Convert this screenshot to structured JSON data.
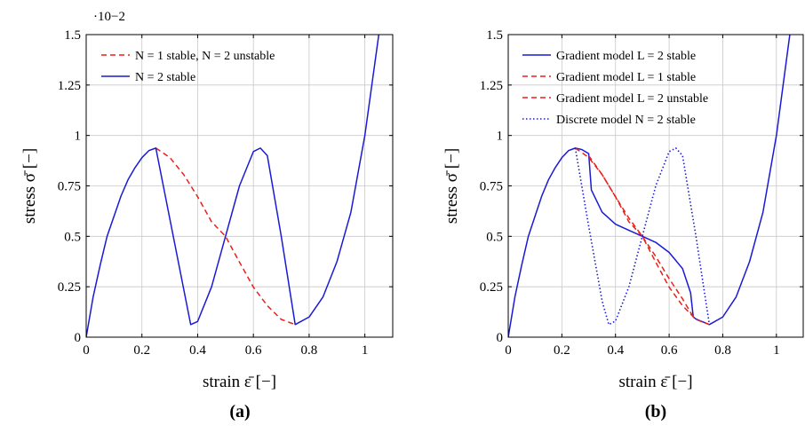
{
  "chart_data": [
    {
      "type": "line",
      "panel_label": "(a)",
      "xlabel": "strain ε̄ [−]",
      "ylabel": "stress σ̄ [−]",
      "y_scale_note": "·10−2",
      "xlim": [
        0,
        1.1
      ],
      "ylim": [
        0,
        1.5
      ],
      "xticks": [
        "0",
        "0.2",
        "0.4",
        "0.6",
        "0.8",
        "1"
      ],
      "yticks": [
        "0",
        "0.25",
        "0.5",
        "0.75",
        "1",
        "1.25",
        "1.5"
      ],
      "grid": true,
      "legend_position": "top-left",
      "series": [
        {
          "name": "N = 1 stable, N = 2 unstable",
          "color": "#e8201a",
          "dash": "dashed",
          "x": [
            0.25,
            0.3,
            0.35,
            0.4,
            0.45,
            0.5,
            0.55,
            0.6,
            0.65,
            0.7,
            0.75
          ],
          "y": [
            0.9375,
            0.891,
            0.806,
            0.696,
            0.572,
            0.5,
            0.372,
            0.248,
            0.156,
            0.088,
            0.0625
          ]
        },
        {
          "name": "N = 2 stable",
          "color": "#1a1ad6",
          "dash": "solid",
          "x": [
            0,
            0.025,
            0.05,
            0.075,
            0.1,
            0.125,
            0.15,
            0.175,
            0.2,
            0.225,
            0.25,
            0.375,
            0.4,
            0.45,
            0.5,
            0.55,
            0.6,
            0.625,
            0.65,
            0.7,
            0.75,
            0.8,
            0.85,
            0.9,
            0.95,
            1,
            1.05
          ],
          "y": [
            0,
            0.2,
            0.356,
            0.5,
            0.6,
            0.7,
            0.78,
            0.84,
            0.89,
            0.925,
            0.9375,
            0.0625,
            0.078,
            0.25,
            0.5,
            0.75,
            0.92,
            0.9375,
            0.9,
            0.5,
            0.0625,
            0.1,
            0.2,
            0.375,
            0.62,
            1.0,
            1.5
          ]
        }
      ]
    },
    {
      "type": "line",
      "panel_label": "(b)",
      "xlabel": "strain ε̄ [−]",
      "ylabel": "stress σ̄ [−]",
      "y_scale_note": "",
      "xlim": [
        0,
        1.1
      ],
      "ylim": [
        0,
        1.5
      ],
      "xticks": [
        "0",
        "0.2",
        "0.4",
        "0.6",
        "0.8",
        "1"
      ],
      "yticks": [
        "0",
        "0.25",
        "0.5",
        "0.75",
        "1",
        "1.25",
        "1.5"
      ],
      "grid": true,
      "legend_position": "top-left",
      "series": [
        {
          "name": "Gradient model L = 2 stable",
          "color": "#1a1ad6",
          "dash": "solid",
          "x": [
            0,
            0.025,
            0.05,
            0.075,
            0.1,
            0.125,
            0.15,
            0.175,
            0.2,
            0.225,
            0.25,
            0.275,
            0.3,
            0.31,
            0.35,
            0.4,
            0.45,
            0.5,
            0.55,
            0.6,
            0.65,
            0.68,
            0.69,
            0.7,
            0.75,
            0.8,
            0.85,
            0.9,
            0.95,
            1,
            1.05
          ],
          "y": [
            0,
            0.2,
            0.356,
            0.5,
            0.6,
            0.7,
            0.78,
            0.84,
            0.89,
            0.925,
            0.9375,
            0.93,
            0.91,
            0.73,
            0.62,
            0.56,
            0.53,
            0.5,
            0.47,
            0.42,
            0.34,
            0.22,
            0.1,
            0.09,
            0.0625,
            0.1,
            0.2,
            0.375,
            0.62,
            1.0,
            1.5
          ]
        },
        {
          "name": "Gradient model L = 1 stable",
          "color": "#e8201a",
          "dash": "dashed",
          "x": [
            0.25,
            0.3,
            0.35,
            0.4,
            0.45,
            0.5,
            0.55,
            0.6,
            0.65,
            0.7,
            0.75
          ],
          "y": [
            0.9375,
            0.891,
            0.806,
            0.696,
            0.572,
            0.5,
            0.372,
            0.248,
            0.156,
            0.088,
            0.0625
          ]
        },
        {
          "name": "Gradient model L = 2 unstable",
          "color": "#e8201a",
          "dash": "dashed",
          "x": [
            0.3,
            0.35,
            0.4,
            0.45,
            0.5,
            0.55,
            0.6,
            0.65,
            0.69
          ],
          "y": [
            0.9,
            0.806,
            0.696,
            0.59,
            0.5,
            0.4,
            0.29,
            0.19,
            0.1
          ]
        },
        {
          "name": "Discrete model N = 2 stable",
          "color": "#1a1ad6",
          "dash": "dotted",
          "x": [
            0.25,
            0.3,
            0.35,
            0.375,
            0.4,
            0.45,
            0.5,
            0.55,
            0.6,
            0.625,
            0.65,
            0.7,
            0.75
          ],
          "y": [
            0.9375,
            0.55,
            0.18,
            0.0625,
            0.08,
            0.25,
            0.5,
            0.75,
            0.92,
            0.9375,
            0.9,
            0.5,
            0.0625
          ]
        }
      ]
    }
  ]
}
